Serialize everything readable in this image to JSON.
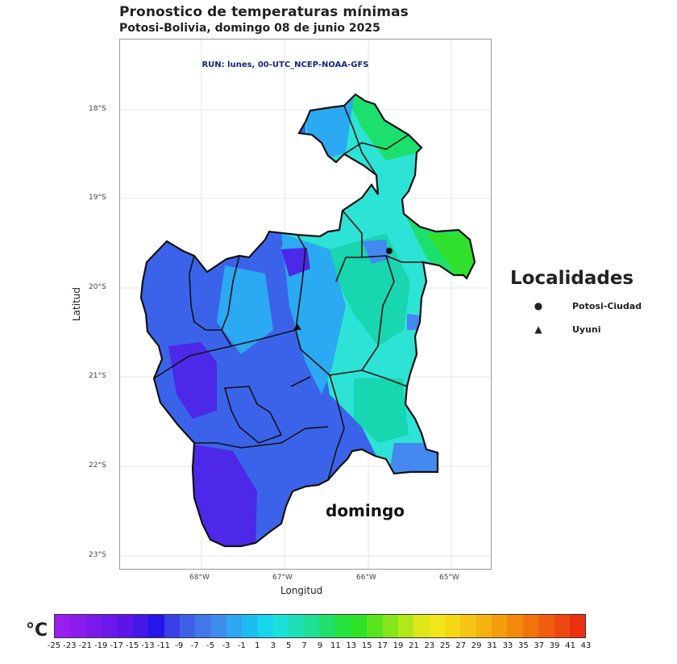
{
  "header": {
    "title": "Pronostico de temperaturas mínimas",
    "subtitle": "Potosi-Bolivia, domingo 08 de junio 2025"
  },
  "map": {
    "run_label": "RUN: lunes, 00-UTC_NCEP-NOAA-GFS",
    "day_label": "domingo",
    "x_axis_label": "Longitud",
    "y_axis_label": "Latitud",
    "lat_ticks": [
      "18°S",
      "19°S",
      "20°S",
      "21°S",
      "22°S",
      "23°S"
    ],
    "lon_ticks": [
      "68°W",
      "67°W",
      "66°W",
      "65°W"
    ],
    "colors": {
      "coldest": "#4d28e8",
      "very_cold": "#3b63ea",
      "cold": "#4488f0",
      "cool": "#2ba9f2",
      "mild": "#2de3d6",
      "teal": "#17d6b0",
      "warm_green": "#1ddf6e",
      "bright_green": "#2fe02c",
      "outline": "#111111"
    }
  },
  "legend": {
    "title": "Localidades",
    "items": [
      {
        "symbol": "●",
        "label": "Potosi-Ciudad"
      },
      {
        "symbol": "▲",
        "label": "Uyuni"
      }
    ]
  },
  "colorbar": {
    "unit": "°C",
    "labels": [
      "-25",
      "-23",
      "-21",
      "-19",
      "-17",
      "-15",
      "-13",
      "-11",
      "-9",
      "-7",
      "-5",
      "-3",
      "-1",
      "1",
      "3",
      "5",
      "7",
      "9",
      "11",
      "13",
      "15",
      "17",
      "19",
      "21",
      "23",
      "25",
      "27",
      "29",
      "31",
      "33",
      "35",
      "37",
      "39",
      "41",
      "43"
    ],
    "colors": [
      "#9a1ef0",
      "#8a1cee",
      "#7b19ec",
      "#6c17eb",
      "#5d14e9",
      "#4418e7",
      "#2616ea",
      "#3b3fe7",
      "#3f61e9",
      "#4378ea",
      "#3f8cef",
      "#2ea6f2",
      "#1cbef2",
      "#18d5ee",
      "#1ce1d9",
      "#1ddfb6",
      "#1edf92",
      "#1fe06a",
      "#26e23f",
      "#2ee227",
      "#58e31f",
      "#86e61c",
      "#b2e81a",
      "#dde81a",
      "#f1e617",
      "#f4d815",
      "#f4c512",
      "#f4b20f",
      "#f49d0d",
      "#f3890c",
      "#f2720c",
      "#f05c0d",
      "#ee460f",
      "#eb3012"
    ]
  }
}
